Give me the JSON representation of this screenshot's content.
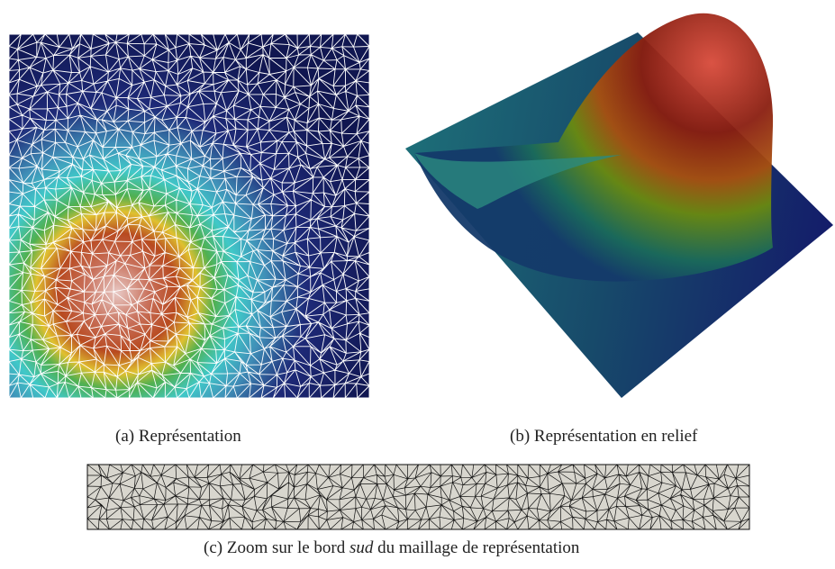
{
  "figures": [
    {
      "label": "(a)",
      "caption": "Représentation"
    },
    {
      "label": "(b)",
      "caption": "Représentation en relief"
    },
    {
      "label": "(c)",
      "caption_parts": [
        "Zoom sur le bord ",
        "sud",
        " du maillage de représentation"
      ]
    }
  ]
}
